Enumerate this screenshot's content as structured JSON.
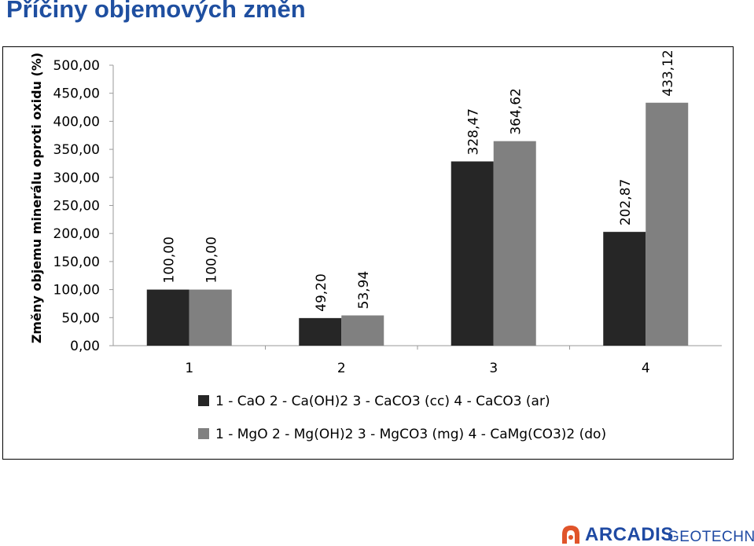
{
  "slide": {
    "title": "Příčiny objemových změn"
  },
  "chart_data": {
    "type": "bar",
    "ylabel": "Změny objemu minerálu oproti oxidu (%)",
    "xlabel": "",
    "categories": [
      "1",
      "2",
      "3",
      "4"
    ],
    "ylim": [
      0,
      500
    ],
    "yticks": [
      "0,00",
      "50,00",
      "100,00",
      "150,00",
      "200,00",
      "250,00",
      "300,00",
      "350,00",
      "400,00",
      "450,00",
      "500,00"
    ],
    "series": [
      {
        "name": "1 - CaO 2 - Ca(OH)2 3 - CaCO3 (cc) 4 - CaCO3 (ar)",
        "values": [
          100.0,
          49.2,
          328.47,
          202.87
        ],
        "labels": [
          "100,00",
          "49,20",
          "328,47",
          "202,87"
        ],
        "color": "#262626"
      },
      {
        "name": "1 - MgO 2 - Mg(OH)2 3 - MgCO3 (mg) 4 - CaMg(CO3)2 (do)",
        "values": [
          100.0,
          53.94,
          364.62,
          433.12
        ],
        "labels": [
          "100,00",
          "53,94",
          "364,62",
          "433,12"
        ],
        "color": "#808080"
      }
    ],
    "grid": false,
    "legend": "bottom"
  },
  "logo": {
    "brand": "ARCADIS",
    "sub": "GEOTECHNIKA",
    "color": "#1f4aa3",
    "accent": "#e0542a"
  }
}
